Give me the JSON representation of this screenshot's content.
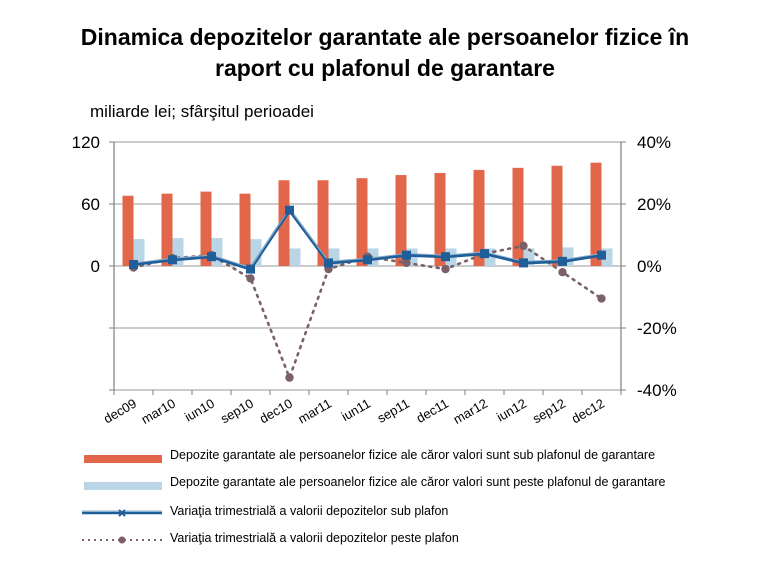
{
  "title_line1": "Dinamica depozitelor garantate ale persoanelor fizice în",
  "title_line2": "raport cu plafonul de garantare",
  "unit_label": "miliarde lei; sfârşitul perioadei",
  "chart_data": {
    "type": "bar+line",
    "categories": [
      "dec09",
      "mar10",
      "iun10",
      "sep10",
      "dec10",
      "mar11",
      "iun11",
      "sep11",
      "dec11",
      "mar12",
      "iun12",
      "sep12",
      "dec12"
    ],
    "y_left": {
      "ticks": [
        "120",
        "60",
        "0"
      ],
      "ylim": [
        -120,
        120
      ]
    },
    "y_right": {
      "ticks": [
        "40%",
        "20%",
        "0%",
        "-20%",
        "-40%"
      ],
      "ylim": [
        -40,
        40
      ]
    },
    "grid": "horizontal",
    "series": [
      {
        "name": "Depozite garantate ale persoanelor fizice ale căror valori sunt sub plafonul de garantare",
        "type": "bar",
        "axis": "left",
        "color": "#E2674A",
        "values": [
          68,
          70,
          72,
          70,
          83,
          83,
          85,
          88,
          90,
          93,
          95,
          97,
          100
        ]
      },
      {
        "name": "Depozite garantate ale persoanelor fizice ale căror valori sunt peste plafonul de garantare",
        "type": "bar",
        "axis": "left",
        "color": "#B9D5E6",
        "values": [
          26,
          27,
          27,
          26,
          17,
          17,
          17,
          17,
          17,
          17,
          17,
          18,
          17
        ]
      },
      {
        "name": "Variaţia trimestrială a valorii depozitelor sub plafon",
        "type": "line",
        "axis": "right",
        "color": "#1F5E99",
        "values": [
          0.5,
          2,
          3,
          -1,
          18,
          1,
          2,
          3.5,
          3,
          4,
          1,
          1.5,
          3.5
        ]
      },
      {
        "name": "Variaţia trimestrială a valorii depozitelor peste plafon",
        "type": "line-dotted",
        "axis": "right",
        "color": "#7B6167",
        "values": [
          -0.5,
          2.5,
          3.5,
          -4,
          -36,
          -1,
          3,
          1,
          -1,
          4,
          6.5,
          -2,
          -10.5
        ]
      }
    ],
    "legend_position": "bottom"
  }
}
